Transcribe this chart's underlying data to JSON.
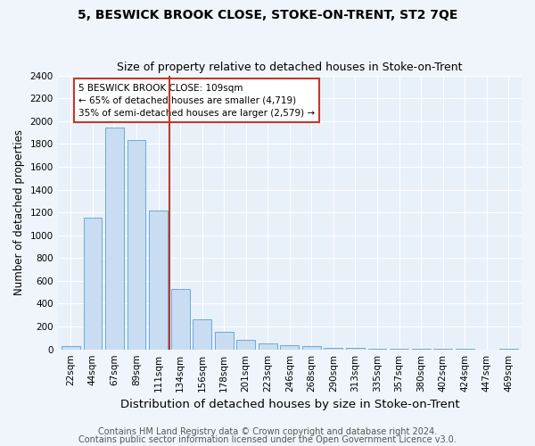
{
  "title": "5, BESWICK BROOK CLOSE, STOKE-ON-TRENT, ST2 7QE",
  "subtitle": "Size of property relative to detached houses in Stoke-on-Trent",
  "xlabel": "Distribution of detached houses by size in Stoke-on-Trent",
  "ylabel": "Number of detached properties",
  "bar_labels": [
    "22sqm",
    "44sqm",
    "67sqm",
    "89sqm",
    "111sqm",
    "134sqm",
    "156sqm",
    "178sqm",
    "201sqm",
    "223sqm",
    "246sqm",
    "268sqm",
    "290sqm",
    "313sqm",
    "335sqm",
    "357sqm",
    "380sqm",
    "402sqm",
    "424sqm",
    "447sqm",
    "469sqm"
  ],
  "bar_values": [
    25,
    1155,
    1940,
    1835,
    1215,
    525,
    265,
    150,
    80,
    55,
    40,
    25,
    15,
    12,
    8,
    5,
    4,
    3,
    2,
    1,
    2
  ],
  "bar_color": "#c9ddf2",
  "bar_edgecolor": "#6aaad4",
  "vline_index": 4.5,
  "vline_color": "#c0392b",
  "annotation_text": "5 BESWICK BROOK CLOSE: 109sqm\n← 65% of detached houses are smaller (4,719)\n35% of semi-detached houses are larger (2,579) →",
  "annotation_box_edgecolor": "#c0392b",
  "ylim": [
    0,
    2400
  ],
  "yticks": [
    0,
    200,
    400,
    600,
    800,
    1000,
    1200,
    1400,
    1600,
    1800,
    2000,
    2200,
    2400
  ],
  "footer1": "Contains HM Land Registry data © Crown copyright and database right 2024.",
  "footer2": "Contains public sector information licensed under the Open Government Licence v3.0.",
  "bg_color": "#f0f5fb",
  "plot_bg_color": "#e8f0f9",
  "grid_color": "#ffffff",
  "title_fontsize": 10,
  "subtitle_fontsize": 9,
  "xlabel_fontsize": 9.5,
  "ylabel_fontsize": 8.5,
  "tick_fontsize": 7.5,
  "footer_fontsize": 7
}
